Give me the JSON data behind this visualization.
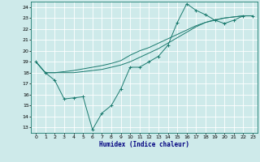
{
  "xlabel": "Humidex (Indice chaleur)",
  "ylabel": "",
  "bg_color": "#ceeaea",
  "grid_color": "#ffffff",
  "line_color": "#1a7a6e",
  "xlim": [
    -0.5,
    23.5
  ],
  "ylim": [
    12.5,
    24.5
  ],
  "xticks": [
    0,
    1,
    2,
    3,
    4,
    5,
    6,
    7,
    8,
    9,
    10,
    11,
    12,
    13,
    14,
    15,
    16,
    17,
    18,
    19,
    20,
    21,
    22,
    23
  ],
  "yticks": [
    13,
    14,
    15,
    16,
    17,
    18,
    19,
    20,
    21,
    22,
    23,
    24
  ],
  "line1_x": [
    0,
    1,
    2,
    3,
    4,
    5,
    6,
    7,
    8,
    9,
    10,
    11,
    12,
    13,
    14,
    15,
    16,
    17,
    18,
    19,
    20,
    21,
    22,
    23
  ],
  "line1_y": [
    19,
    18,
    17.3,
    15.6,
    15.7,
    15.8,
    12.8,
    14.3,
    15.0,
    16.5,
    18.5,
    18.5,
    19.0,
    19.5,
    20.5,
    22.6,
    24.3,
    23.7,
    23.3,
    22.8,
    22.5,
    22.8,
    23.2,
    23.2
  ],
  "line2_x": [
    0,
    1,
    2,
    3,
    4,
    5,
    6,
    7,
    8,
    9,
    10,
    11,
    12,
    13,
    14,
    15,
    16,
    17,
    18,
    19,
    20,
    21,
    22,
    23
  ],
  "line2_y": [
    19,
    18,
    18,
    18,
    18,
    18.1,
    18.2,
    18.3,
    18.5,
    18.7,
    19.0,
    19.4,
    19.8,
    20.2,
    20.7,
    21.2,
    21.7,
    22.2,
    22.6,
    22.8,
    23.0,
    23.1,
    23.2,
    23.2
  ],
  "line3_x": [
    0,
    1,
    2,
    3,
    4,
    5,
    6,
    7,
    8,
    9,
    10,
    11,
    12,
    13,
    14,
    15,
    16,
    17,
    18,
    19,
    20,
    21,
    22,
    23
  ],
  "line3_y": [
    19,
    18,
    18,
    18.1,
    18.2,
    18.35,
    18.5,
    18.65,
    18.85,
    19.1,
    19.6,
    20.0,
    20.3,
    20.7,
    21.1,
    21.5,
    21.9,
    22.3,
    22.6,
    22.85,
    23.0,
    23.1,
    23.2,
    23.2
  ]
}
